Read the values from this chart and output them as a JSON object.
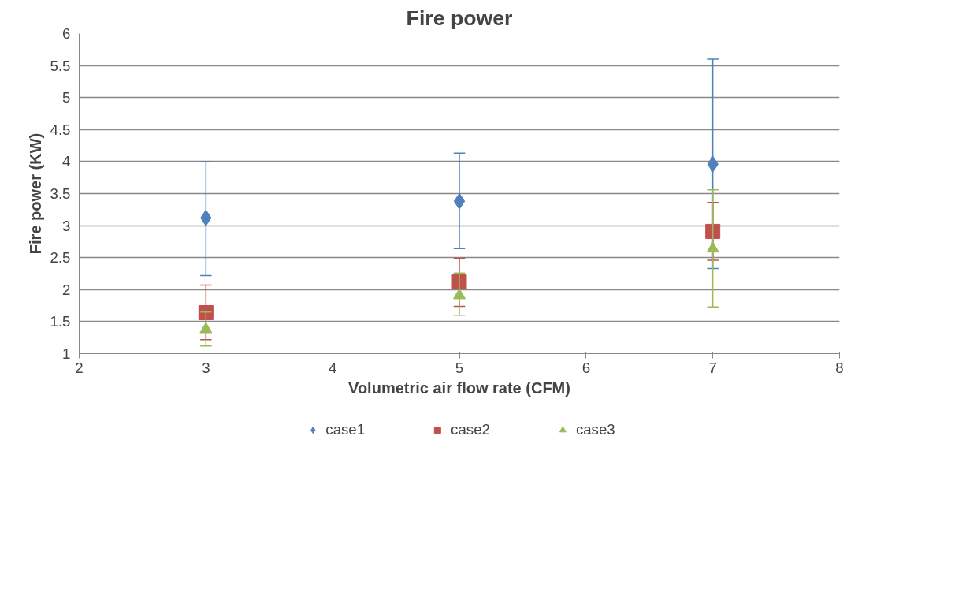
{
  "chart_data": {
    "type": "scatter",
    "title": "Fire power",
    "xlabel": "Volumetric air flow rate (CFM)",
    "ylabel": "Fire power (KW)",
    "xlim": [
      2,
      8
    ],
    "xticks": [
      2,
      3,
      4,
      5,
      6,
      7,
      8
    ],
    "ylim": [
      1,
      6
    ],
    "yticks": [
      1,
      1.5,
      2,
      2.5,
      3,
      3.5,
      4,
      4.5,
      5,
      5.5,
      6
    ],
    "grid": "y",
    "legend": "bottom",
    "series": [
      {
        "name": "case1",
        "color": "#4f81bd",
        "marker": "diamond",
        "x": [
          3,
          5,
          7
        ],
        "values": [
          3.12,
          3.38,
          3.96
        ],
        "errors": [
          [
            2.22,
            4.0
          ],
          [
            2.64,
            4.13
          ],
          [
            2.33,
            5.6
          ]
        ]
      },
      {
        "name": "case2",
        "color": "#c0504d",
        "marker": "square",
        "x": [
          3,
          5,
          7
        ],
        "values": [
          1.64,
          2.12,
          2.91
        ],
        "errors": [
          [
            1.22,
            2.07
          ],
          [
            1.74,
            2.49
          ],
          [
            2.46,
            3.36
          ]
        ]
      },
      {
        "name": "case3",
        "color": "#9bbb59",
        "marker": "triangle",
        "x": [
          3,
          5,
          7
        ],
        "values": [
          1.38,
          1.91,
          2.64
        ],
        "errors": [
          [
            1.12,
            1.65
          ],
          [
            1.6,
            2.26
          ],
          [
            1.73,
            3.56
          ]
        ]
      }
    ]
  }
}
